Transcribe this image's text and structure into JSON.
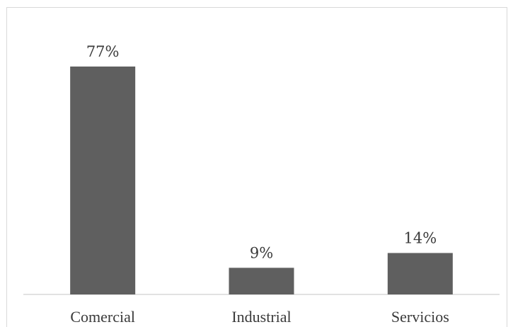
{
  "chart_data": {
    "type": "bar",
    "categories": [
      "Comercial",
      "Industrial",
      "Servicios"
    ],
    "values": [
      77,
      9,
      14
    ],
    "value_labels": [
      "77%",
      "9%",
      "14%"
    ],
    "unit": "%",
    "title": "",
    "xlabel": "",
    "ylabel": "",
    "ylim": [
      0,
      77
    ],
    "grid": false,
    "legend": "none",
    "colors": {
      "bar": "#5f5f5f",
      "axis": "#d0d0d0",
      "text": "#3a3a3a"
    }
  }
}
